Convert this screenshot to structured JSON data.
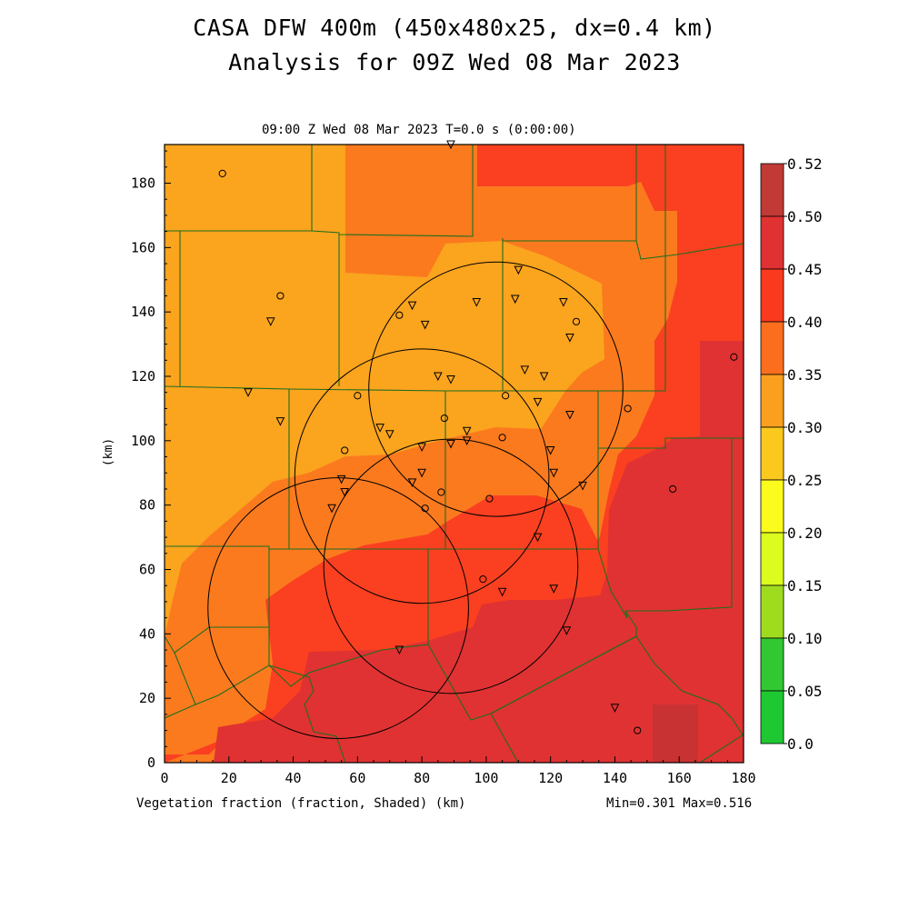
{
  "titles": {
    "line1": "CASA DFW 400m (450x480x25, dx=0.4 km)",
    "line2": "Analysis for 09Z Wed 08 Mar 2023"
  },
  "plot": {
    "subtitle": "09:00 Z Wed 08 Mar 2023   T=0.0 s (0:00:00)",
    "x_label": "Vegetation fraction (fraction, Shaded)  (km)",
    "y_label": "(km)",
    "minmax": "Min=0.301 Max=0.516",
    "x_ticks": [
      "0",
      "20",
      "40",
      "60",
      "80",
      "100",
      "120",
      "140",
      "160",
      "180"
    ],
    "y_ticks": [
      "0",
      "20",
      "40",
      "60",
      "80",
      "100",
      "120",
      "140",
      "160",
      "180"
    ]
  },
  "colorbar": {
    "labels": [
      "0.52",
      "0.50",
      "0.45",
      "0.40",
      "0.35",
      "0.30",
      "0.25",
      "0.20",
      "0.15",
      "0.10",
      "0.05",
      "0.0"
    ],
    "colors": [
      "#c13a35",
      "#e03232",
      "#fa3a1e",
      "#fb6e1e",
      "#fba01e",
      "#fbc81e",
      "#fbfb1e",
      "#dcfb1e",
      "#a0dc1e",
      "#32c832",
      "#1ec832",
      "#1ee6a0"
    ]
  },
  "map_colors": {
    "v030": "#fba41e",
    "v035": "#fb7a1e",
    "v040": "#fa4020",
    "v045": "#e03232",
    "v050": "#c83232",
    "boundary": "#1e6e1e"
  },
  "radars": [
    {
      "x": 103,
      "y": 116,
      "r": 39.5
    },
    {
      "x": 80,
      "y": 89,
      "r": 39.5
    },
    {
      "x": 89,
      "y": 61,
      "r": 39.5
    },
    {
      "x": 54,
      "y": 48,
      "r": 40.5
    }
  ],
  "stations_triangle": [
    [
      89,
      192
    ],
    [
      110,
      153
    ],
    [
      109,
      144
    ],
    [
      124,
      143
    ],
    [
      97,
      143
    ],
    [
      77,
      142
    ],
    [
      81,
      136
    ],
    [
      33,
      137
    ],
    [
      126,
      132
    ],
    [
      112,
      122
    ],
    [
      118,
      120
    ],
    [
      85,
      120
    ],
    [
      89,
      119
    ],
    [
      26,
      115
    ],
    [
      116,
      112
    ],
    [
      126,
      108
    ],
    [
      36,
      106
    ],
    [
      67,
      104
    ],
    [
      94,
      103
    ],
    [
      70,
      102
    ],
    [
      94,
      100
    ],
    [
      89,
      99
    ],
    [
      80,
      98
    ],
    [
      120,
      97
    ],
    [
      121,
      90
    ],
    [
      80,
      90
    ],
    [
      55,
      88
    ],
    [
      77,
      87
    ],
    [
      130,
      86
    ],
    [
      56,
      84
    ],
    [
      52,
      79
    ],
    [
      116,
      70
    ],
    [
      121,
      54
    ],
    [
      105,
      53
    ],
    [
      125,
      41
    ],
    [
      73,
      35
    ],
    [
      140,
      17
    ]
  ],
  "stations_circle": [
    [
      18,
      183
    ],
    [
      36,
      145
    ],
    [
      73,
      139
    ],
    [
      128,
      137
    ],
    [
      177,
      126
    ],
    [
      60,
      114
    ],
    [
      106,
      114
    ],
    [
      144,
      110
    ],
    [
      87,
      107
    ],
    [
      105,
      101
    ],
    [
      56,
      97
    ],
    [
      86,
      84
    ],
    [
      101,
      82
    ],
    [
      81,
      79
    ],
    [
      158,
      85
    ],
    [
      99,
      57
    ],
    [
      147,
      10
    ]
  ]
}
